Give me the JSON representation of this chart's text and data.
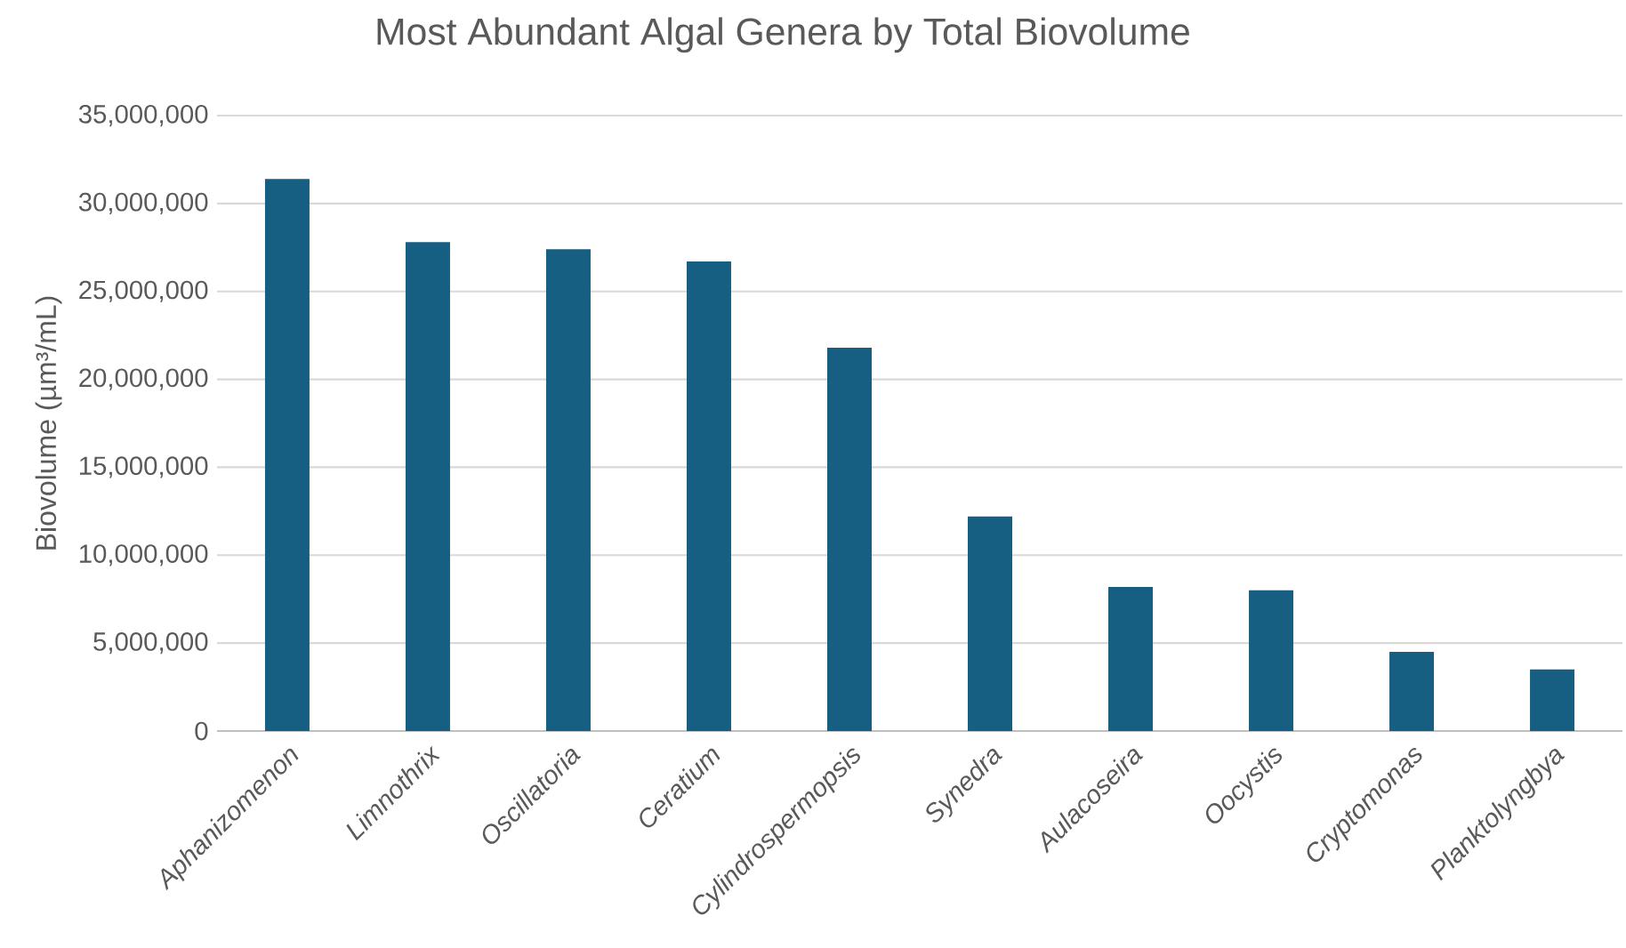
{
  "chart_data": {
    "type": "bar",
    "title": "Most Abundant Algal Genera by Total Biovolume",
    "ylabel": "Biovolume (µm³/mL)",
    "categories": [
      "Aphanizomenon",
      "Limnothrix",
      "Oscillatoria",
      "Ceratium",
      "Cylindrospermopsis",
      "Synedra",
      "Aulacoseira",
      "Oocystis",
      "Cryptomonas",
      "Planktolyngbya"
    ],
    "values": [
      31400000,
      27800000,
      27400000,
      26700000,
      21800000,
      12200000,
      8200000,
      8000000,
      4500000,
      3500000
    ],
    "color": "#175f82",
    "ylim": [
      0,
      35000000
    ],
    "yticks": [
      {
        "value": 0,
        "label": "0"
      },
      {
        "value": 5000000,
        "label": "5,000,000"
      },
      {
        "value": 10000000,
        "label": "10,000,000"
      },
      {
        "value": 15000000,
        "label": "15,000,000"
      },
      {
        "value": 20000000,
        "label": "20,000,000"
      },
      {
        "value": 25000000,
        "label": "25,000,000"
      },
      {
        "value": 30000000,
        "label": "30,000,000"
      },
      {
        "value": 35000000,
        "label": "35,000,000"
      }
    ],
    "grid": "y"
  }
}
